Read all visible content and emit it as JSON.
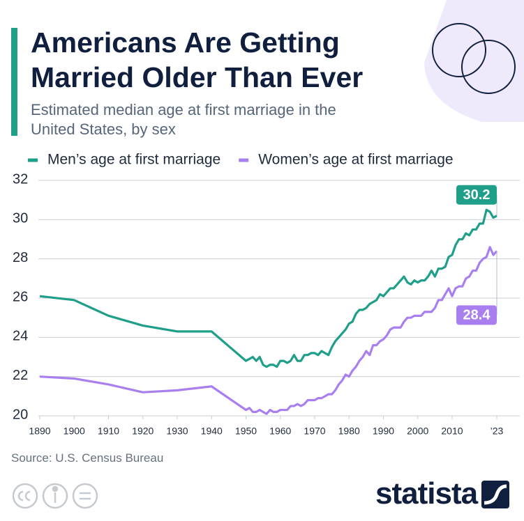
{
  "chart_data": {
    "type": "line",
    "title": "Americans Are Getting Married Older Than Ever",
    "subtitle": "Estimated median age at first marriage in the United States, by sex",
    "source": "Source: U.S. Census Bureau",
    "brand": "statista",
    "x": [
      1890,
      1900,
      1910,
      1920,
      1930,
      1940,
      1950,
      1951,
      1952,
      1953,
      1954,
      1955,
      1956,
      1957,
      1958,
      1959,
      1960,
      1961,
      1962,
      1963,
      1964,
      1965,
      1966,
      1967,
      1968,
      1969,
      1970,
      1971,
      1972,
      1973,
      1974,
      1975,
      1976,
      1977,
      1978,
      1979,
      1980,
      1981,
      1982,
      1983,
      1984,
      1985,
      1986,
      1987,
      1988,
      1989,
      1990,
      1991,
      1992,
      1993,
      1994,
      1995,
      1996,
      1997,
      1998,
      1999,
      2000,
      2001,
      2002,
      2003,
      2004,
      2005,
      2006,
      2007,
      2008,
      2009,
      2010,
      2011,
      2012,
      2013,
      2014,
      2015,
      2016,
      2017,
      2018,
      2019,
      2020,
      2021,
      2022,
      2023
    ],
    "series": [
      {
        "name": "Men’s age at first marriage",
        "color": "#1f9e89",
        "values": [
          26.1,
          25.9,
          25.1,
          24.6,
          24.3,
          24.3,
          22.8,
          22.9,
          23.0,
          22.8,
          23.0,
          22.6,
          22.5,
          22.6,
          22.6,
          22.5,
          22.8,
          22.8,
          22.7,
          22.8,
          23.1,
          22.8,
          22.8,
          23.1,
          23.1,
          23.2,
          23.2,
          23.1,
          23.3,
          23.2,
          23.1,
          23.5,
          23.8,
          24.0,
          24.2,
          24.4,
          24.7,
          24.8,
          25.2,
          25.4,
          25.4,
          25.5,
          25.7,
          25.8,
          25.9,
          26.2,
          26.1,
          26.3,
          26.5,
          26.5,
          26.7,
          26.9,
          27.1,
          26.8,
          26.7,
          26.9,
          26.8,
          26.9,
          26.9,
          27.1,
          27.4,
          27.1,
          27.5,
          27.5,
          27.6,
          28.1,
          28.2,
          28.7,
          29.0,
          29.0,
          29.3,
          29.2,
          29.5,
          29.5,
          29.8,
          29.8,
          30.5,
          30.4,
          30.1,
          30.2
        ]
      },
      {
        "name": "Women’s age at first marriage",
        "color": "#a97ff0",
        "values": [
          22.0,
          21.9,
          21.6,
          21.2,
          21.3,
          21.5,
          20.3,
          20.4,
          20.2,
          20.2,
          20.3,
          20.2,
          20.1,
          20.3,
          20.2,
          20.2,
          20.3,
          20.3,
          20.3,
          20.5,
          20.5,
          20.6,
          20.5,
          20.6,
          20.8,
          20.8,
          20.8,
          20.9,
          20.9,
          21.0,
          21.1,
          21.1,
          21.3,
          21.6,
          21.8,
          22.1,
          22.0,
          22.3,
          22.5,
          22.8,
          23.0,
          23.3,
          23.1,
          23.6,
          23.6,
          23.8,
          23.9,
          24.1,
          24.4,
          24.5,
          24.5,
          24.5,
          24.8,
          25.0,
          25.0,
          25.1,
          25.1,
          25.1,
          25.3,
          25.3,
          25.3,
          25.5,
          25.9,
          25.9,
          26.2,
          26.5,
          26.1,
          26.5,
          26.6,
          26.6,
          27.0,
          27.1,
          27.4,
          27.4,
          27.8,
          28.0,
          28.1,
          28.6,
          28.2,
          28.4
        ]
      }
    ],
    "xlim": [
      1890,
      2023
    ],
    "xticks": [
      1890,
      1900,
      1910,
      1920,
      1930,
      1940,
      1950,
      1960,
      1970,
      1980,
      1990,
      2000,
      2010,
      {
        "value": 2023,
        "label": "’23"
      }
    ],
    "ylim": [
      20,
      32
    ],
    "yticks": [
      20,
      22,
      24,
      26,
      28,
      30,
      32
    ],
    "grid": true,
    "legend": "top"
  }
}
